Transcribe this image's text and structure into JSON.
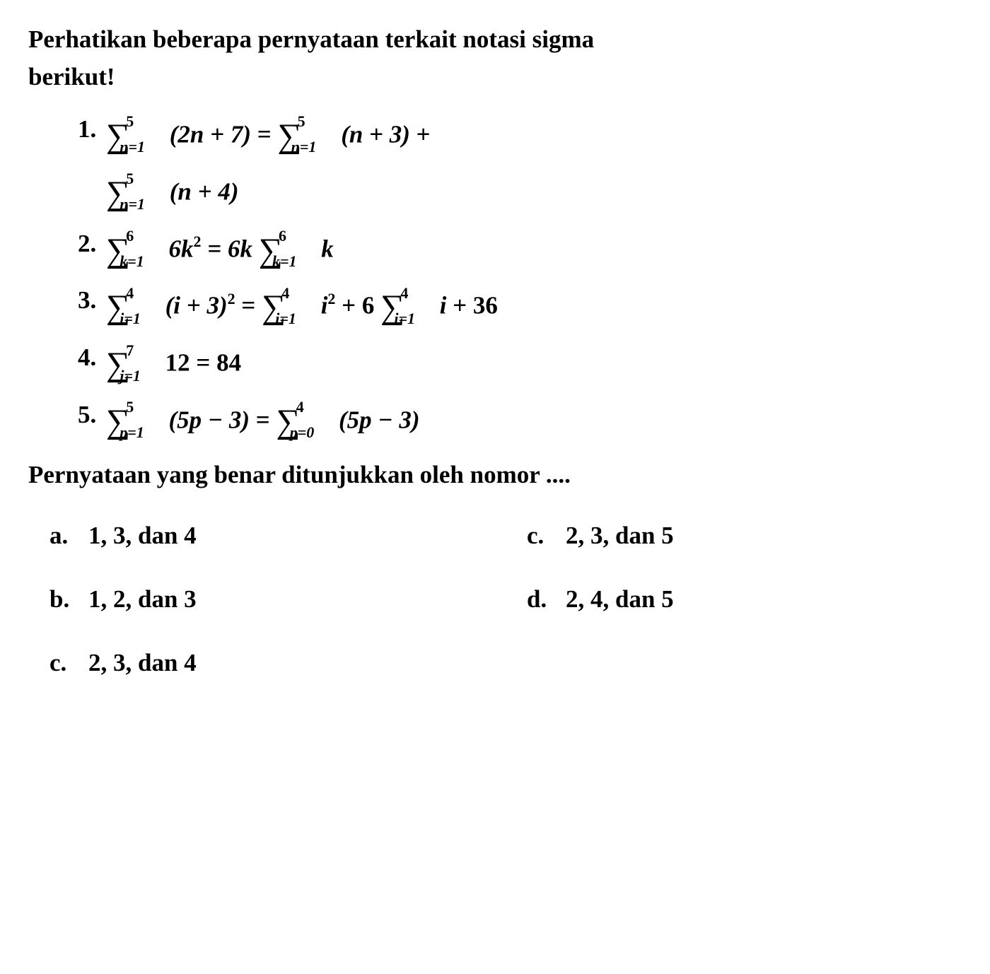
{
  "intro": {
    "line1": "Perhatikan beberapa pernyataan terkait notasi sigma",
    "line2": "berikut!"
  },
  "statements": [
    {
      "num": "1.",
      "sigma1": {
        "upper": "5",
        "lower": "n=1",
        "expr": "(2n + 7)"
      },
      "eq": " = ",
      "sigma2": {
        "upper": "5",
        "lower": "n=1",
        "expr": "(n + 3)"
      },
      "plus": " +",
      "cont_sigma": {
        "upper": "5",
        "lower": "n=1",
        "expr": "(n + 4)"
      }
    },
    {
      "num": "2.",
      "sigma1": {
        "upper": "6",
        "lower": "k=1",
        "expr": "6k"
      },
      "exp1": "2",
      "eq": " = 6k ",
      "sigma2": {
        "upper": "6",
        "lower": "k=1",
        "expr": "k"
      }
    },
    {
      "num": "3.",
      "sigma1": {
        "upper": "4",
        "lower": "i=1",
        "expr": "(i + 3)"
      },
      "exp1": "2",
      "eq": " = ",
      "sigma2": {
        "upper": "4",
        "lower": "i=1",
        "expr": "i"
      },
      "exp2": "2",
      "mid": " + 6 ",
      "sigma3": {
        "upper": "4",
        "lower": "i=1",
        "expr": "i"
      },
      "tail": " + 36"
    },
    {
      "num": "4.",
      "sigma1": {
        "upper": "7",
        "lower": "j=1",
        "expr": "12"
      },
      "eq": " = 84"
    },
    {
      "num": "5.",
      "sigma1": {
        "upper": "5",
        "lower": "p=1",
        "expr": "(5p − 3)"
      },
      "eq": " = ",
      "sigma2": {
        "upper": "4",
        "lower": "p=0",
        "expr": "(5p − 3)"
      }
    }
  ],
  "closing": "Pernyataan yang benar ditunjukkan oleh nomor ....",
  "options": [
    {
      "letter": "a.",
      "text": "1, 3, dan 4"
    },
    {
      "letter": "c.",
      "text": "2, 3, dan 5"
    },
    {
      "letter": "b.",
      "text": "1, 2, dan 3"
    },
    {
      "letter": "d.",
      "text": "2, 4, dan 5"
    },
    {
      "letter": "c.",
      "text": "2, 3, dan 4"
    }
  ],
  "colors": {
    "background": "#ffffff",
    "text": "#000000"
  },
  "typography": {
    "base_fontsize": 35,
    "sigma_fontsize": 48,
    "subsup_fontsize": 22,
    "font_family": "Georgia, Times New Roman, serif",
    "font_weight": "bold"
  }
}
